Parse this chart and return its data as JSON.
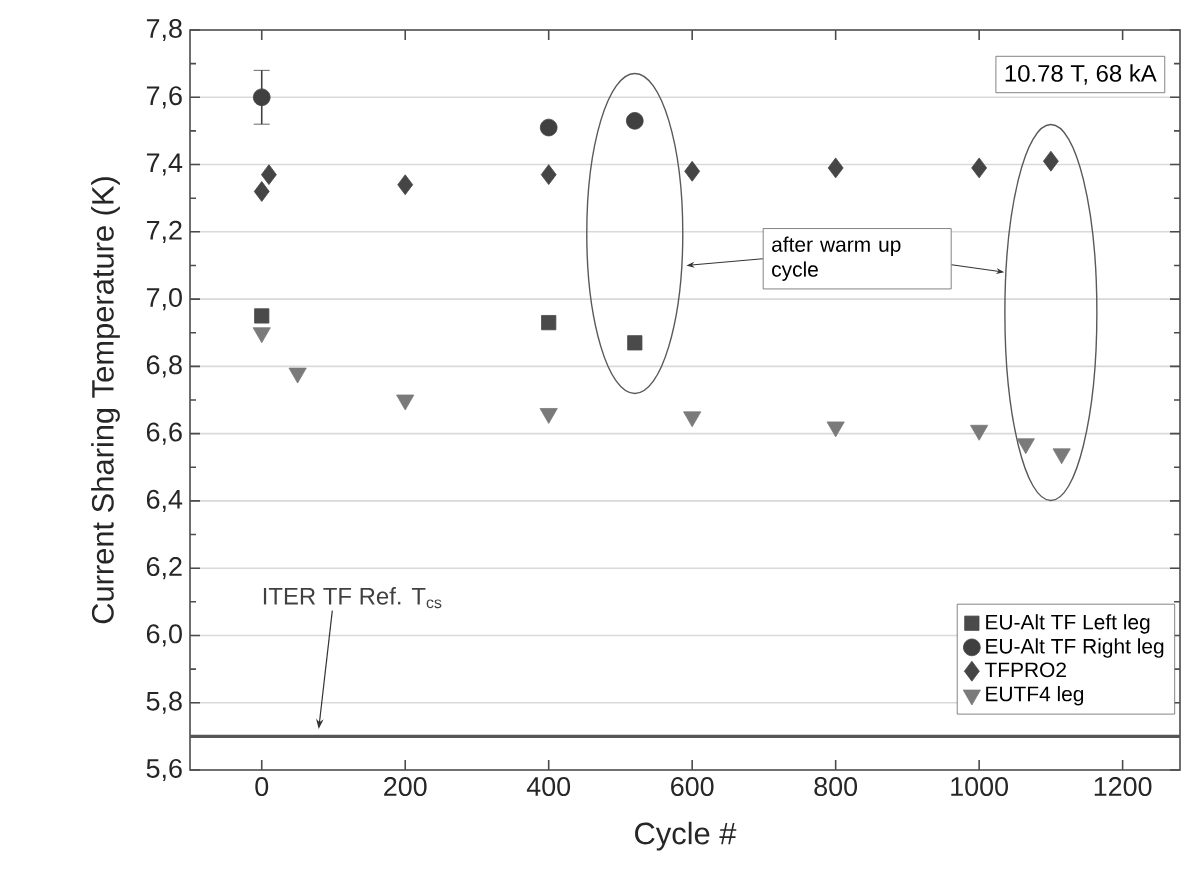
{
  "chart_data": {
    "type": "scatter",
    "xlabel": "Cycle #",
    "ylabel": "Current Sharing Temperature (K)",
    "xlim": [
      -100,
      1280
    ],
    "ylim": [
      5.6,
      7.8
    ],
    "xticks": [
      0,
      200,
      400,
      600,
      800,
      1000,
      1200
    ],
    "yticks": [
      {
        "value": 5.6,
        "label": "5,6"
      },
      {
        "value": 5.8,
        "label": "5,8"
      },
      {
        "value": 6.0,
        "label": "6,0"
      },
      {
        "value": 6.2,
        "label": "6,2"
      },
      {
        "value": 6.4,
        "label": "6,4"
      },
      {
        "value": 6.6,
        "label": "6,6"
      },
      {
        "value": 6.8,
        "label": "6,8"
      },
      {
        "value": 7.0,
        "label": "7,0"
      },
      {
        "value": 7.2,
        "label": "7,2"
      },
      {
        "value": 7.4,
        "label": "7,4"
      },
      {
        "value": 7.6,
        "label": "7,6"
      },
      {
        "value": 7.8,
        "label": "7,8"
      }
    ],
    "grid": "y",
    "legend": "bottom right",
    "ref_lines": [
      {
        "axis": "y",
        "value": 5.7,
        "label": "ITER TF Ref. T$_{cs}$",
        "color": "#555555"
      }
    ],
    "annotations": [
      "10.78 T, 68 kA",
      "after warm up cycle"
    ],
    "series": [
      {
        "name": "EU-Alt TF Left leg",
        "color": "#4a4a4a",
        "marker": "square",
        "x": [
          0,
          400,
          520
        ],
        "values": [
          6.95,
          6.93,
          6.87
        ]
      },
      {
        "name": "EU-Alt TF Right leg",
        "color": "#404040",
        "marker": "circle",
        "x": [
          0,
          400,
          520
        ],
        "values": [
          7.6,
          7.51,
          7.53
        ],
        "errors": [
          0.08,
          null,
          null
        ]
      },
      {
        "name": "TFPRO2",
        "color": "#454545",
        "marker": "diamond",
        "x": [
          0,
          10,
          200,
          400,
          600,
          800,
          1000,
          1100
        ],
        "values": [
          7.32,
          7.37,
          7.34,
          7.37,
          7.38,
          7.39,
          7.39,
          7.41
        ]
      },
      {
        "name": "EUTF4 leg",
        "color": "#7a7a7a",
        "marker": "triangle",
        "x": [
          0,
          50,
          200,
          400,
          600,
          800,
          1000,
          1065,
          1115
        ],
        "values": [
          6.9,
          6.78,
          6.7,
          6.66,
          6.65,
          6.62,
          6.61,
          6.57,
          6.54
        ]
      }
    ]
  }
}
